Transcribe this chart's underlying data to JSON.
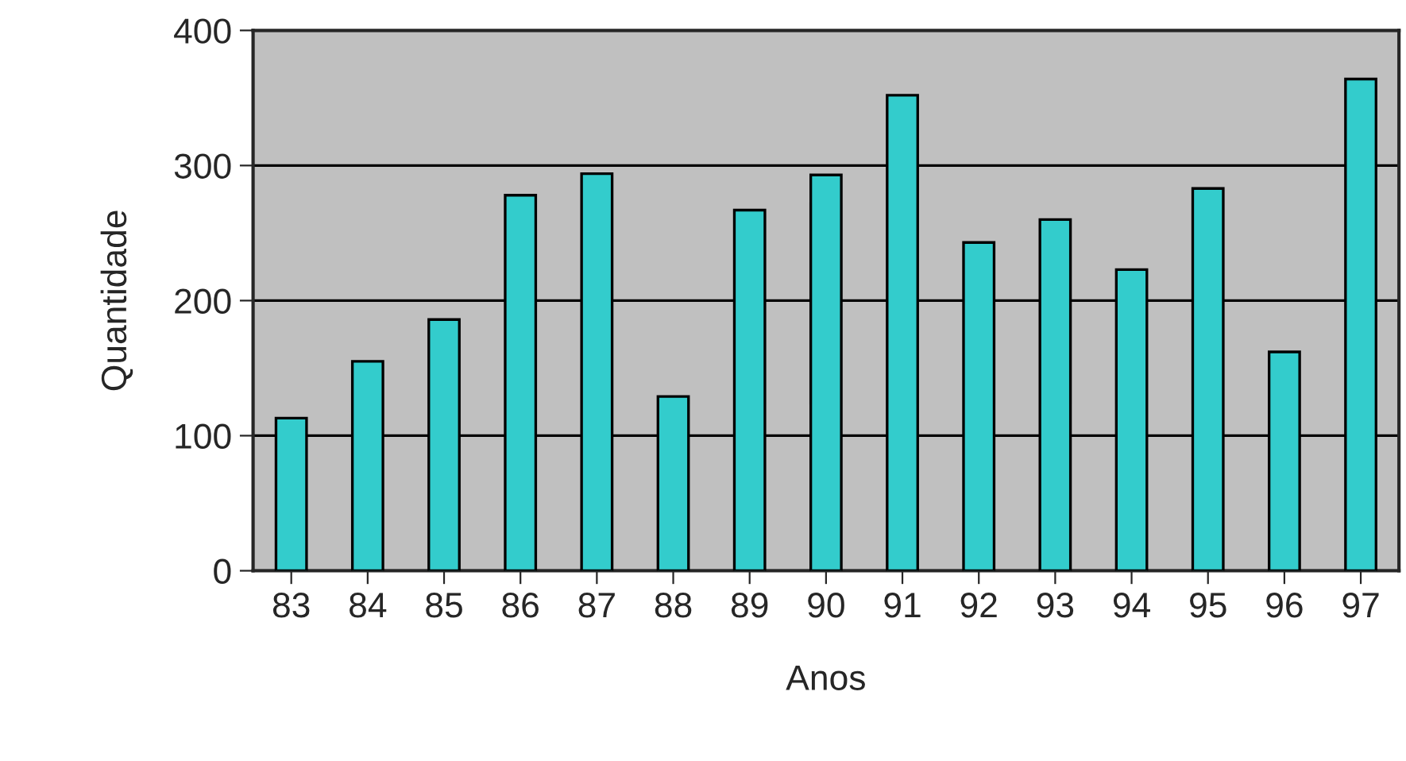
{
  "chart_data": {
    "type": "bar",
    "xlabel": "Anos",
    "ylabel": "Quantidade",
    "categories": [
      "83",
      "84",
      "85",
      "86",
      "87",
      "88",
      "89",
      "90",
      "91",
      "92",
      "93",
      "94",
      "95",
      "96",
      "97"
    ],
    "values": [
      113,
      155,
      186,
      278,
      294,
      129,
      267,
      293,
      352,
      243,
      260,
      223,
      283,
      162,
      364
    ],
    "color": "#33cccc",
    "ylim": [
      0,
      400
    ],
    "yticks": [
      0,
      100,
      200,
      300,
      400
    ],
    "grid": "y",
    "legend": false
  }
}
